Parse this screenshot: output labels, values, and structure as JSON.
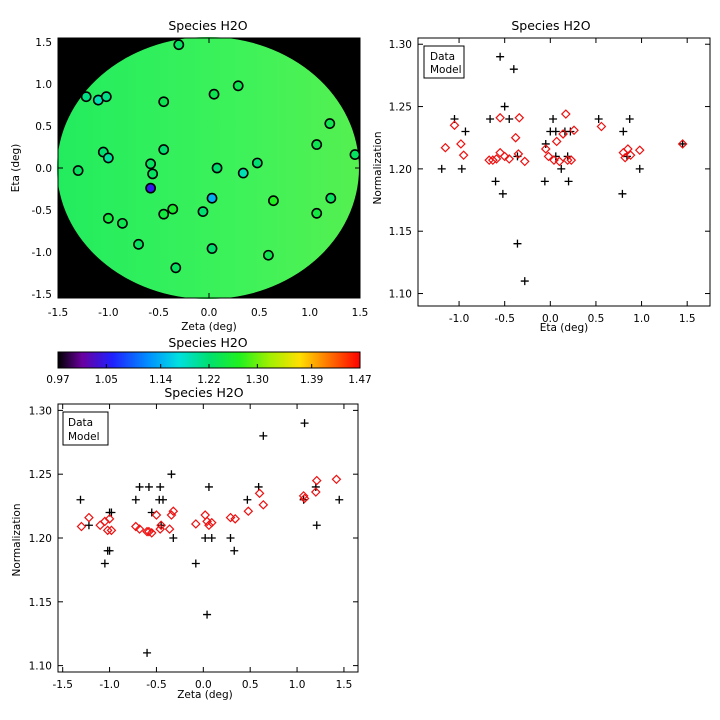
{
  "figure_title": "Species H2O",
  "chart_data": [
    {
      "id": "map",
      "type": "scatter",
      "title": "Species H2O",
      "xlabel": "Zeta (deg)",
      "ylabel": "Eta (deg)",
      "xlim": [
        -1.5,
        1.5
      ],
      "ylim": [
        -1.55,
        1.55
      ],
      "xticks": [
        -1.5,
        -1.0,
        -0.5,
        0.0,
        0.5,
        1.0,
        1.5
      ],
      "yticks": [
        -1.5,
        -1.0,
        -0.5,
        0.0,
        0.5,
        1.0,
        1.5
      ],
      "xtick_labels": [
        "-1.5",
        "-1.0",
        "-0.5",
        "0.0",
        "0.5",
        "1.0",
        "1.5"
      ],
      "ytick_labels": [
        "-1.5",
        "-1.0",
        "-0.5",
        "0.0",
        "0.5",
        "1.0",
        "1.5"
      ],
      "background": "black",
      "field_color": "green",
      "points": [
        {
          "x": -0.3,
          "y": 1.47,
          "v": 1.23
        },
        {
          "x": -1.22,
          "y": 0.85,
          "v": 1.21
        },
        {
          "x": -1.1,
          "y": 0.81,
          "v": 1.19
        },
        {
          "x": -1.02,
          "y": 0.85,
          "v": 1.21
        },
        {
          "x": -0.45,
          "y": 0.79,
          "v": 1.24
        },
        {
          "x": 0.05,
          "y": 0.88,
          "v": 1.24
        },
        {
          "x": 0.29,
          "y": 0.98,
          "v": 1.24
        },
        {
          "x": 1.2,
          "y": 0.53,
          "v": 1.24
        },
        {
          "x": 1.07,
          "y": 0.28,
          "v": 1.24
        },
        {
          "x": 1.45,
          "y": 0.16,
          "v": 1.23
        },
        {
          "x": -1.05,
          "y": 0.19,
          "v": 1.22
        },
        {
          "x": -1.0,
          "y": 0.12,
          "v": 1.2
        },
        {
          "x": -0.45,
          "y": 0.22,
          "v": 1.22
        },
        {
          "x": -0.58,
          "y": 0.05,
          "v": 1.23
        },
        {
          "x": -1.3,
          "y": -0.03,
          "v": 1.23
        },
        {
          "x": -0.56,
          "y": -0.07,
          "v": 1.23
        },
        {
          "x": 0.08,
          "y": 0.0,
          "v": 1.22
        },
        {
          "x": 0.48,
          "y": 0.06,
          "v": 1.22
        },
        {
          "x": 0.34,
          "y": -0.06,
          "v": 1.19
        },
        {
          "x": -0.58,
          "y": -0.24,
          "v": 1.05
        },
        {
          "x": 0.03,
          "y": -0.36,
          "v": 1.14
        },
        {
          "x": -0.36,
          "y": -0.49,
          "v": 1.26
        },
        {
          "x": -0.45,
          "y": -0.55,
          "v": 1.25
        },
        {
          "x": -0.06,
          "y": -0.52,
          "v": 1.22
        },
        {
          "x": 0.64,
          "y": -0.39,
          "v": 1.27
        },
        {
          "x": 1.21,
          "y": -0.36,
          "v": 1.23
        },
        {
          "x": 1.07,
          "y": -0.54,
          "v": 1.25
        },
        {
          "x": -1.0,
          "y": -0.6,
          "v": 1.25
        },
        {
          "x": -0.86,
          "y": -0.66,
          "v": 1.24
        },
        {
          "x": -0.7,
          "y": -0.91,
          "v": 1.23
        },
        {
          "x": 0.03,
          "y": -0.96,
          "v": 1.22
        },
        {
          "x": 0.59,
          "y": -1.04,
          "v": 1.24
        },
        {
          "x": -0.33,
          "y": -1.19,
          "v": 1.23
        }
      ]
    },
    {
      "id": "colorbar",
      "type": "heatmap",
      "title": "Species H2O",
      "range": [
        0.97,
        1.47
      ],
      "tick_values": [
        0.97,
        1.05,
        1.14,
        1.22,
        1.3,
        1.39,
        1.47
      ],
      "tick_labels": [
        "0.97",
        "1.05",
        "1.14",
        "1.22",
        "1.30",
        "1.39",
        "1.47"
      ],
      "colormap": "rainbow"
    },
    {
      "id": "eta",
      "type": "scatter",
      "title": "Species H2O",
      "xlabel": "Eta (deg)",
      "ylabel": "Normalization",
      "xlim": [
        -1.45,
        1.75
      ],
      "ylim": [
        1.09,
        1.305
      ],
      "xticks": [
        -1.0,
        -0.5,
        0.0,
        0.5,
        1.0,
        1.5
      ],
      "xtick_labels": [
        "-1.0",
        "-0.5",
        "0.0",
        "0.5",
        "1.0",
        "1.5"
      ],
      "yticks": [
        1.1,
        1.15,
        1.2,
        1.25,
        1.3
      ],
      "ytick_labels": [
        "1.10",
        "1.15",
        "1.20",
        "1.25",
        "1.30"
      ],
      "legend": [
        "Data",
        "Model"
      ],
      "legend_colors": [
        "#000000",
        "#ee1111"
      ],
      "legend_position": "top-left",
      "series": [
        {
          "name": "Data",
          "marker": "plus",
          "color": "#000000",
          "points": [
            [
              -1.19,
              1.2
            ],
            [
              -1.05,
              1.24
            ],
            [
              -0.97,
              1.2
            ],
            [
              -0.93,
              1.23
            ],
            [
              -0.66,
              1.24
            ],
            [
              -0.6,
              1.19
            ],
            [
              -0.55,
              1.29
            ],
            [
              -0.52,
              1.18
            ],
            [
              -0.5,
              1.25
            ],
            [
              -0.45,
              1.24
            ],
            [
              -0.4,
              1.28
            ],
            [
              -0.36,
              1.14
            ],
            [
              -0.36,
              1.21
            ],
            [
              -0.28,
              1.11
            ],
            [
              -0.06,
              1.19
            ],
            [
              -0.05,
              1.22
            ],
            [
              0.0,
              1.23
            ],
            [
              0.03,
              1.24
            ],
            [
              0.06,
              1.21
            ],
            [
              0.06,
              1.23
            ],
            [
              0.12,
              1.2
            ],
            [
              0.16,
              1.23
            ],
            [
              0.19,
              1.21
            ],
            [
              0.2,
              1.19
            ],
            [
              0.22,
              1.23
            ],
            [
              0.53,
              1.24
            ],
            [
              0.79,
              1.18
            ],
            [
              0.8,
              1.23
            ],
            [
              0.84,
              1.21
            ],
            [
              0.87,
              1.24
            ],
            [
              0.98,
              1.2
            ],
            [
              1.45,
              1.22
            ]
          ]
        },
        {
          "name": "Model",
          "marker": "diamond",
          "color": "#ee1111",
          "points": [
            [
              -1.15,
              1.217
            ],
            [
              -1.05,
              1.235
            ],
            [
              -0.98,
              1.22
            ],
            [
              -0.95,
              1.211
            ],
            [
              -0.67,
              1.207
            ],
            [
              -0.63,
              1.207
            ],
            [
              -0.59,
              1.208
            ],
            [
              -0.55,
              1.241
            ],
            [
              -0.55,
              1.213
            ],
            [
              -0.5,
              1.21
            ],
            [
              -0.45,
              1.208
            ],
            [
              -0.38,
              1.225
            ],
            [
              -0.35,
              1.212
            ],
            [
              -0.34,
              1.241
            ],
            [
              -0.28,
              1.206
            ],
            [
              -0.05,
              1.216
            ],
            [
              -0.02,
              1.21
            ],
            [
              0.04,
              1.207
            ],
            [
              0.07,
              1.222
            ],
            [
              0.1,
              1.206
            ],
            [
              0.14,
              1.228
            ],
            [
              0.17,
              1.244
            ],
            [
              0.19,
              1.207
            ],
            [
              0.23,
              1.207
            ],
            [
              0.26,
              1.231
            ],
            [
              0.56,
              1.234
            ],
            [
              0.8,
              1.213
            ],
            [
              0.82,
              1.209
            ],
            [
              0.85,
              1.216
            ],
            [
              0.88,
              1.211
            ],
            [
              0.98,
              1.215
            ],
            [
              1.45,
              1.22
            ]
          ]
        }
      ]
    },
    {
      "id": "zeta",
      "type": "scatter",
      "title": "Species H2O",
      "xlabel": "Zeta (deg)",
      "ylabel": "Normalization",
      "xlim": [
        -1.55,
        1.65
      ],
      "ylim": [
        1.095,
        1.305
      ],
      "xticks": [
        -1.5,
        -1.0,
        -0.5,
        0.0,
        0.5,
        1.0,
        1.5
      ],
      "xtick_labels": [
        "-1.5",
        "-1.0",
        "-0.5",
        "0.0",
        "0.5",
        "1.0",
        "1.5"
      ],
      "yticks": [
        1.1,
        1.15,
        1.2,
        1.25,
        1.3
      ],
      "ytick_labels": [
        "1.10",
        "1.15",
        "1.20",
        "1.25",
        "1.30"
      ],
      "legend": [
        "Data",
        "Model"
      ],
      "legend_colors": [
        "#000000",
        "#ee1111"
      ],
      "legend_position": "top-left",
      "series": [
        {
          "name": "Data",
          "marker": "plus",
          "color": "#000000",
          "points": [
            [
              -1.31,
              1.23
            ],
            [
              -1.22,
              1.21
            ],
            [
              -1.05,
              1.18
            ],
            [
              -1.02,
              1.19
            ],
            [
              -1.0,
              1.19
            ],
            [
              -1.0,
              1.22
            ],
            [
              -0.98,
              1.22
            ],
            [
              -0.72,
              1.23
            ],
            [
              -0.68,
              1.24
            ],
            [
              -0.6,
              1.11
            ],
            [
              -0.58,
              1.24
            ],
            [
              -0.55,
              1.22
            ],
            [
              -0.47,
              1.23
            ],
            [
              -0.46,
              1.24
            ],
            [
              -0.45,
              1.21
            ],
            [
              -0.43,
              1.23
            ],
            [
              -0.34,
              1.25
            ],
            [
              -0.32,
              1.2
            ],
            [
              -0.08,
              1.18
            ],
            [
              0.02,
              1.2
            ],
            [
              0.04,
              1.14
            ],
            [
              0.06,
              1.24
            ],
            [
              0.09,
              1.2
            ],
            [
              0.29,
              1.2
            ],
            [
              0.33,
              1.19
            ],
            [
              0.47,
              1.23
            ],
            [
              0.59,
              1.24
            ],
            [
              0.64,
              1.28
            ],
            [
              1.07,
              1.23
            ],
            [
              1.08,
              1.29
            ],
            [
              1.2,
              1.24
            ],
            [
              1.21,
              1.21
            ],
            [
              1.45,
              1.23
            ]
          ]
        },
        {
          "name": "Model",
          "marker": "diamond",
          "color": "#ee1111",
          "points": [
            [
              -1.3,
              1.209
            ],
            [
              -1.22,
              1.216
            ],
            [
              -1.1,
              1.21
            ],
            [
              -1.05,
              1.213
            ],
            [
              -1.02,
              1.206
            ],
            [
              -1.0,
              1.215
            ],
            [
              -0.98,
              1.206
            ],
            [
              -0.72,
              1.209
            ],
            [
              -0.68,
              1.207
            ],
            [
              -0.6,
              1.205
            ],
            [
              -0.58,
              1.205
            ],
            [
              -0.55,
              1.204
            ],
            [
              -0.5,
              1.218
            ],
            [
              -0.46,
              1.207
            ],
            [
              -0.45,
              1.21
            ],
            [
              -0.36,
              1.207
            ],
            [
              -0.34,
              1.218
            ],
            [
              -0.32,
              1.221
            ],
            [
              -0.08,
              1.211
            ],
            [
              0.02,
              1.218
            ],
            [
              0.04,
              1.213
            ],
            [
              0.06,
              1.21
            ],
            [
              0.09,
              1.212
            ],
            [
              0.29,
              1.216
            ],
            [
              0.34,
              1.215
            ],
            [
              0.48,
              1.221
            ],
            [
              0.6,
              1.235
            ],
            [
              0.64,
              1.226
            ],
            [
              1.07,
              1.233
            ],
            [
              1.08,
              1.231
            ],
            [
              1.2,
              1.236
            ],
            [
              1.21,
              1.245
            ],
            [
              1.42,
              1.246
            ]
          ]
        }
      ]
    }
  ]
}
